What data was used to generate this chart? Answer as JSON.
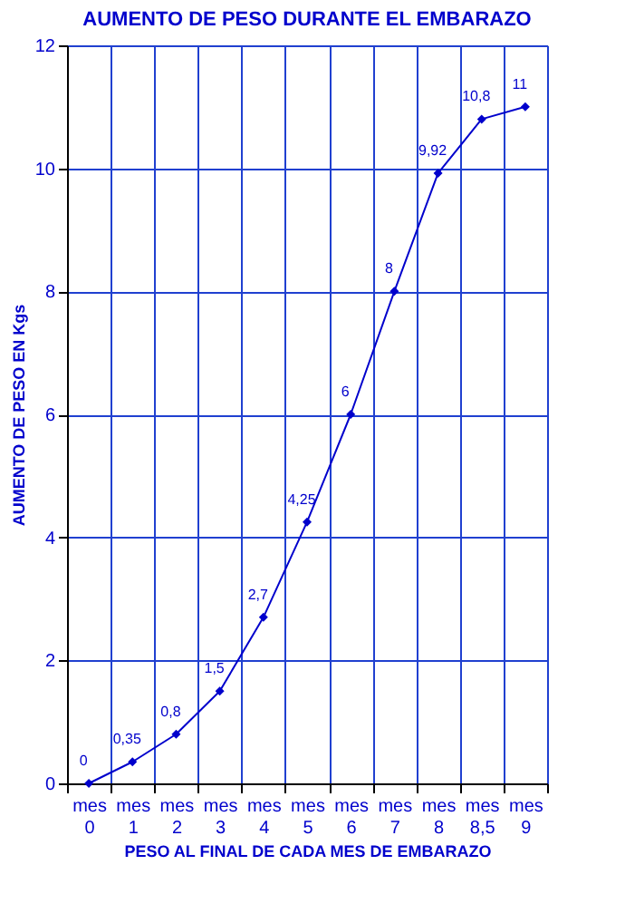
{
  "chart_data": {
    "type": "line",
    "title": "AUMENTO DE PESO DURANTE EL EMBARAZO",
    "xlabel": "PESO AL FINAL DE CADA MES DE EMBARAZO",
    "ylabel": "AUMENTO DE PESO EN Kgs",
    "categories": [
      "mes 0",
      "mes 1",
      "mes 2",
      "mes 3",
      "mes 4",
      "mes 5",
      "mes 6",
      "mes 7",
      "mes 8",
      "mes 8,5",
      "mes 9"
    ],
    "series": [
      {
        "color": "#0000cc",
        "values": [
          0,
          0.35,
          0.8,
          1.5,
          2.7,
          4.25,
          6,
          8,
          9.92,
          10.8,
          11
        ],
        "value_labels": [
          "0",
          "0,35",
          "0,8",
          "1,5",
          "2,7",
          "4,25",
          "6",
          "8",
          "9,92",
          "10,8",
          "11"
        ]
      }
    ],
    "ylim": [
      0,
      12
    ],
    "yticks": [
      0,
      2,
      4,
      6,
      8,
      10,
      12
    ],
    "grid": true,
    "marker": "diamond",
    "line_style": "solid"
  }
}
